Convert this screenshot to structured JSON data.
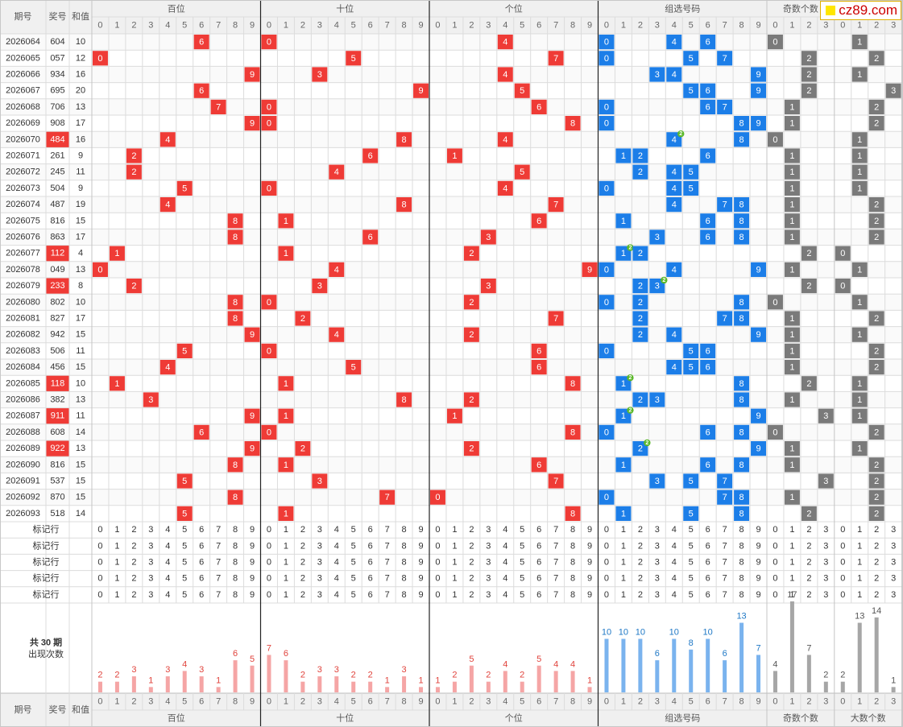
{
  "header": {
    "issue_col": "期号",
    "prize_col": "奖号",
    "sum_col": "和值",
    "groups": [
      "百位",
      "十位",
      "个位",
      "组选号码",
      "奇数个数",
      "大数个数"
    ],
    "digit_labels": [
      "0",
      "1",
      "2",
      "3",
      "4",
      "5",
      "6",
      "7",
      "8",
      "9"
    ],
    "count_labels": [
      "0",
      "1",
      "2",
      "3"
    ]
  },
  "rows": [
    {
      "issue": "2026064",
      "number": "604",
      "sum": "10",
      "group": false
    },
    {
      "issue": "2026065",
      "number": "057",
      "sum": "12",
      "group": false
    },
    {
      "issue": "2026066",
      "number": "934",
      "sum": "16",
      "group": false
    },
    {
      "issue": "2026067",
      "number": "695",
      "sum": "20",
      "group": false
    },
    {
      "issue": "2026068",
      "number": "706",
      "sum": "13",
      "group": false
    },
    {
      "issue": "2026069",
      "number": "908",
      "sum": "17",
      "group": false
    },
    {
      "issue": "2026070",
      "number": "484",
      "sum": "16",
      "group": true
    },
    {
      "issue": "2026071",
      "number": "261",
      "sum": "9",
      "group": false
    },
    {
      "issue": "2026072",
      "number": "245",
      "sum": "11",
      "group": false
    },
    {
      "issue": "2026073",
      "number": "504",
      "sum": "9",
      "group": false
    },
    {
      "issue": "2026074",
      "number": "487",
      "sum": "19",
      "group": false
    },
    {
      "issue": "2026075",
      "number": "816",
      "sum": "15",
      "group": false
    },
    {
      "issue": "2026076",
      "number": "863",
      "sum": "17",
      "group": false
    },
    {
      "issue": "2026077",
      "number": "112",
      "sum": "4",
      "group": true
    },
    {
      "issue": "2026078",
      "number": "049",
      "sum": "13",
      "group": false
    },
    {
      "issue": "2026079",
      "number": "233",
      "sum": "8",
      "group": true
    },
    {
      "issue": "2026080",
      "number": "802",
      "sum": "10",
      "group": false
    },
    {
      "issue": "2026081",
      "number": "827",
      "sum": "17",
      "group": false
    },
    {
      "issue": "2026082",
      "number": "942",
      "sum": "15",
      "group": false
    },
    {
      "issue": "2026083",
      "number": "506",
      "sum": "11",
      "group": false
    },
    {
      "issue": "2026084",
      "number": "456",
      "sum": "15",
      "group": false
    },
    {
      "issue": "2026085",
      "number": "118",
      "sum": "10",
      "group": true
    },
    {
      "issue": "2026086",
      "number": "382",
      "sum": "13",
      "group": false
    },
    {
      "issue": "2026087",
      "number": "911",
      "sum": "11",
      "group": true
    },
    {
      "issue": "2026088",
      "number": "608",
      "sum": "14",
      "group": false
    },
    {
      "issue": "2026089",
      "number": "922",
      "sum": "13",
      "group": true
    },
    {
      "issue": "2026090",
      "number": "816",
      "sum": "15",
      "group": false
    },
    {
      "issue": "2026091",
      "number": "537",
      "sum": "15",
      "group": false
    },
    {
      "issue": "2026092",
      "number": "870",
      "sum": "15",
      "group": false
    },
    {
      "issue": "2026093",
      "number": "518",
      "sum": "14",
      "group": false
    }
  ],
  "marker_label": "标记行",
  "marker_row_count": 5,
  "summary": {
    "line1": "共 30 期",
    "line2": "出现次数"
  },
  "chart_data": {
    "type": "bar",
    "periods": 30,
    "series": [
      {
        "name": "百位",
        "categories": [
          "0",
          "1",
          "2",
          "3",
          "4",
          "5",
          "6",
          "7",
          "8",
          "9"
        ],
        "values": [
          2,
          2,
          3,
          1,
          3,
          4,
          3,
          1,
          6,
          5
        ]
      },
      {
        "name": "十位",
        "categories": [
          "0",
          "1",
          "2",
          "3",
          "4",
          "5",
          "6",
          "7",
          "8",
          "9"
        ],
        "values": [
          7,
          6,
          2,
          3,
          3,
          2,
          2,
          1,
          3,
          1
        ]
      },
      {
        "name": "个位",
        "categories": [
          "0",
          "1",
          "2",
          "3",
          "4",
          "5",
          "6",
          "7",
          "8",
          "9"
        ],
        "values": [
          1,
          2,
          5,
          2,
          4,
          2,
          5,
          4,
          4,
          1
        ]
      },
      {
        "name": "组选号码",
        "categories": [
          "0",
          "1",
          "2",
          "3",
          "4",
          "5",
          "6",
          "7",
          "8",
          "9"
        ],
        "values": [
          10,
          10,
          10,
          6,
          10,
          8,
          10,
          6,
          13,
          7
        ]
      },
      {
        "name": "奇数个数",
        "categories": [
          "0",
          "1",
          "2",
          "3"
        ],
        "values": [
          4,
          17,
          7,
          2
        ]
      },
      {
        "name": "大数个数",
        "categories": [
          "0",
          "1",
          "2",
          "3"
        ],
        "values": [
          2,
          13,
          14,
          1
        ]
      }
    ]
  },
  "colors": {
    "position_ball": "#ef3b36",
    "group_ball": "#1c7ee8",
    "count_ball": "#7a7a7a",
    "repeat_badge": "#5bb82a",
    "bar_position": "#f5a5a5",
    "bar_group": "#7ab3ee",
    "bar_count": "#a6a6a6",
    "header_bg": "#f0f0f0",
    "grid": "#dcdcdc",
    "text": "#333333",
    "header_text": "#555555"
  },
  "watermark": {
    "text": "cz89.com"
  }
}
